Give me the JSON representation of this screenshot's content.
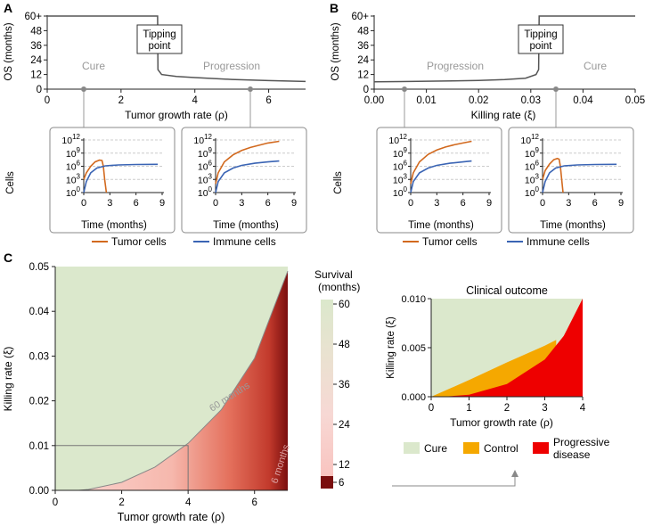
{
  "panel_a": {
    "label": "A",
    "ylabel": "OS (months)",
    "xlabel": "Tumor growth rate (ρ)",
    "region_left": "Cure",
    "region_right": "Progression",
    "tipping_line1": "Tipping",
    "tipping_line2": "point",
    "inset_ylabel": "Cells",
    "inset_xlabel": "Time (months)",
    "legend_tumor": "Tumor cells",
    "legend_immune": "Immune cells"
  },
  "panel_b": {
    "label": "B",
    "ylabel": "OS (months)",
    "xlabel": "Killing rate (ξ)",
    "region_left": "Progression",
    "region_right": "Cure",
    "tipping_line1": "Tipping",
    "tipping_line2": "point",
    "inset_ylabel": "Cells",
    "inset_xlabel": "Time (months)",
    "legend_tumor": "Tumor cells",
    "legend_immune": "Immune cells"
  },
  "panel_c": {
    "label": "C",
    "xlabel": "Tumor growth rate (ρ)",
    "ylabel": "Killing rate (ξ)",
    "contour_60": "60 months",
    "contour_6": "6 months",
    "colorbar_title1": "Survival",
    "colorbar_title2": "(months)",
    "outcome_title": "Clinical outcome",
    "outcome_xlabel": "Tumor growth rate (ρ)",
    "outcome_ylabel": "Killing rate (ξ)",
    "legend_cure": "Cure",
    "legend_control": "Control",
    "legend_progressive1": "Progressive",
    "legend_progressive2": "disease"
  },
  "colors": {
    "tumor": "#d2691e",
    "immune": "#3a64b4",
    "cure": "#dbe8cc",
    "control": "#f5a800",
    "progressive": "#ee0000",
    "os_line": "#555555"
  },
  "chart_data": [
    {
      "type": "line",
      "panel": "A",
      "xlabel": "Tumor growth rate (ρ)",
      "ylabel": "OS (months)",
      "xlim": [
        0,
        7
      ],
      "ylim": [
        0,
        60
      ],
      "xticks": [
        0,
        2,
        4,
        6
      ],
      "yticks": [
        0,
        12,
        24,
        36,
        48,
        "60+"
      ],
      "series": [
        {
          "x": [
            0,
            1,
            2,
            2.99,
            3.0,
            3.1,
            3.5,
            4,
            5,
            6,
            7
          ],
          "y": [
            60,
            60,
            60,
            60,
            16,
            12,
            10.5,
            9.5,
            8,
            7,
            6.3
          ]
        }
      ],
      "markers_x": [
        1.0,
        5.5
      ]
    },
    {
      "type": "line",
      "panel": "B",
      "xlabel": "Killing rate (ξ)",
      "ylabel": "OS (months)",
      "xlim": [
        0,
        0.05
      ],
      "ylim": [
        0,
        60
      ],
      "xticks": [
        "0.00",
        "0.01",
        "0.02",
        "0.03",
        "0.04",
        "0.05"
      ],
      "yticks": [
        0,
        12,
        24,
        36,
        48,
        "60+"
      ],
      "series": [
        {
          "x": [
            0,
            0.005,
            0.01,
            0.015,
            0.02,
            0.025,
            0.029,
            0.031,
            0.0315,
            0.0316,
            0.04,
            0.05
          ],
          "y": [
            6,
            6.2,
            6.5,
            6.8,
            7.2,
            7.8,
            9,
            12,
            16,
            60,
            60,
            60
          ]
        }
      ],
      "markers_x": [
        0.005,
        0.035
      ]
    },
    {
      "type": "line",
      "panel": "A-inset-left",
      "xlabel": "Time (months)",
      "ylabel": "Cells",
      "xlim": [
        0,
        9
      ],
      "xticks": [
        0,
        3,
        6,
        9
      ],
      "yticks": [
        "10^0",
        "10^3",
        "10^6",
        "10^9",
        "10^12"
      ],
      "series": [
        {
          "name": "Tumor cells",
          "x": [
            0,
            0.3,
            0.8,
            1.3,
            1.8,
            2.1,
            2.25,
            2.4,
            2.6
          ],
          "y": [
            3,
            4.5,
            6,
            7,
            7.4,
            7.3,
            6,
            3,
            0
          ]
        },
        {
          "name": "Immune cells",
          "x": [
            0,
            0.3,
            0.8,
            1.5,
            2.5,
            4,
            6,
            8.5
          ],
          "y": [
            0,
            2.5,
            4.5,
            5.6,
            6.1,
            6.3,
            6.4,
            6.45
          ]
        }
      ]
    },
    {
      "type": "line",
      "panel": "A-inset-right",
      "xlabel": "Time (months)",
      "ylabel": "Cells",
      "xlim": [
        0,
        9
      ],
      "xticks": [
        0,
        3,
        6,
        9
      ],
      "series": [
        {
          "name": "Tumor cells",
          "x": [
            0,
            0.3,
            1,
            2,
            3,
            4,
            5,
            6,
            7.3
          ],
          "y": [
            2,
            4.5,
            7,
            8.6,
            9.6,
            10.3,
            10.8,
            11.3,
            11.7
          ]
        },
        {
          "name": "Immune cells",
          "x": [
            0,
            0.3,
            1,
            2,
            3,
            4.5,
            6,
            7.3
          ],
          "y": [
            0,
            2.5,
            4.5,
            5.6,
            6.2,
            6.7,
            7.0,
            7.2
          ]
        }
      ]
    },
    {
      "type": "line",
      "panel": "B-inset-left",
      "xlabel": "Time (months)",
      "ylabel": "Cells",
      "xlim": [
        0,
        9
      ],
      "xticks": [
        0,
        3,
        6,
        9
      ],
      "yticks": [
        "10^0",
        "10^3",
        "10^6",
        "10^9",
        "10^12"
      ],
      "series": [
        {
          "name": "Tumor cells",
          "x": [
            0,
            0.3,
            1,
            2,
            3,
            4,
            5,
            6,
            7
          ],
          "y": [
            2,
            4.5,
            7,
            8.7,
            9.7,
            10.4,
            10.9,
            11.3,
            11.7
          ]
        },
        {
          "name": "Immune cells",
          "x": [
            0,
            0.3,
            1,
            2,
            3,
            4.5,
            6,
            7
          ],
          "y": [
            0,
            2.5,
            4.5,
            5.6,
            6.2,
            6.7,
            7.0,
            7.2
          ]
        }
      ]
    },
    {
      "type": "line",
      "panel": "B-inset-right",
      "xlabel": "Time (months)",
      "ylabel": "Cells",
      "xlim": [
        0,
        9
      ],
      "xticks": [
        0,
        3,
        6,
        9
      ],
      "series": [
        {
          "name": "Tumor cells",
          "x": [
            0,
            0.3,
            0.8,
            1.3,
            1.7,
            1.9,
            2.05,
            2.2,
            2.35
          ],
          "y": [
            3,
            5,
            6.5,
            7.5,
            7.8,
            7.6,
            6,
            3,
            0
          ]
        },
        {
          "name": "Immune cells",
          "x": [
            0,
            0.3,
            0.8,
            1.5,
            2.5,
            4,
            6,
            8.5
          ],
          "y": [
            0,
            2.5,
            4.5,
            5.6,
            6.1,
            6.3,
            6.4,
            6.45
          ]
        }
      ]
    },
    {
      "type": "heatmap",
      "panel": "C",
      "xlabel": "Tumor growth rate (ρ)",
      "ylabel": "Killing rate (ξ)",
      "xlim": [
        0,
        7
      ],
      "ylim": [
        0,
        0.05
      ],
      "xticks": [
        0,
        2,
        4,
        6
      ],
      "yticks": [
        "0.00",
        "0.01",
        "0.02",
        "0.03",
        "0.04",
        "0.05"
      ],
      "colorbar_ticks": [
        6,
        12,
        24,
        36,
        48,
        60
      ],
      "colorbar_title": "Survival (months)",
      "boundary_60_months": {
        "x": [
          0.7,
          1,
          2,
          3,
          4,
          5,
          6,
          7
        ],
        "y": [
          0,
          0.0002,
          0.0018,
          0.0052,
          0.0105,
          0.018,
          0.0295,
          0.049
        ]
      },
      "guide_point": {
        "x": 4,
        "y": 0.01
      },
      "annotations": [
        "60 months",
        "6 months"
      ]
    },
    {
      "type": "area",
      "panel": "C-inset",
      "title": "Clinical outcome",
      "xlabel": "Tumor growth rate (ρ)",
      "ylabel": "Killing rate (ξ)",
      "xlim": [
        0,
        4
      ],
      "ylim": [
        0,
        0.01
      ],
      "xticks": [
        0,
        1,
        2,
        3,
        4
      ],
      "yticks": [
        "0.000",
        "0.005",
        "0.010"
      ],
      "series": [
        {
          "name": "Cure",
          "x": [
            0,
            4
          ],
          "y_upper": [
            0.01,
            0.01
          ]
        },
        {
          "name": "Control",
          "x": [
            0,
            1,
            2,
            3,
            3.3
          ],
          "y_upper": [
            0,
            0.0017,
            0.0035,
            0.0052,
            0.0058
          ]
        },
        {
          "name": "Progressive disease",
          "x": [
            0.3,
            1,
            2,
            3,
            3.5,
            4
          ],
          "y_upper": [
            0,
            0.0002,
            0.0013,
            0.0038,
            0.0062,
            0.01
          ]
        }
      ]
    }
  ]
}
